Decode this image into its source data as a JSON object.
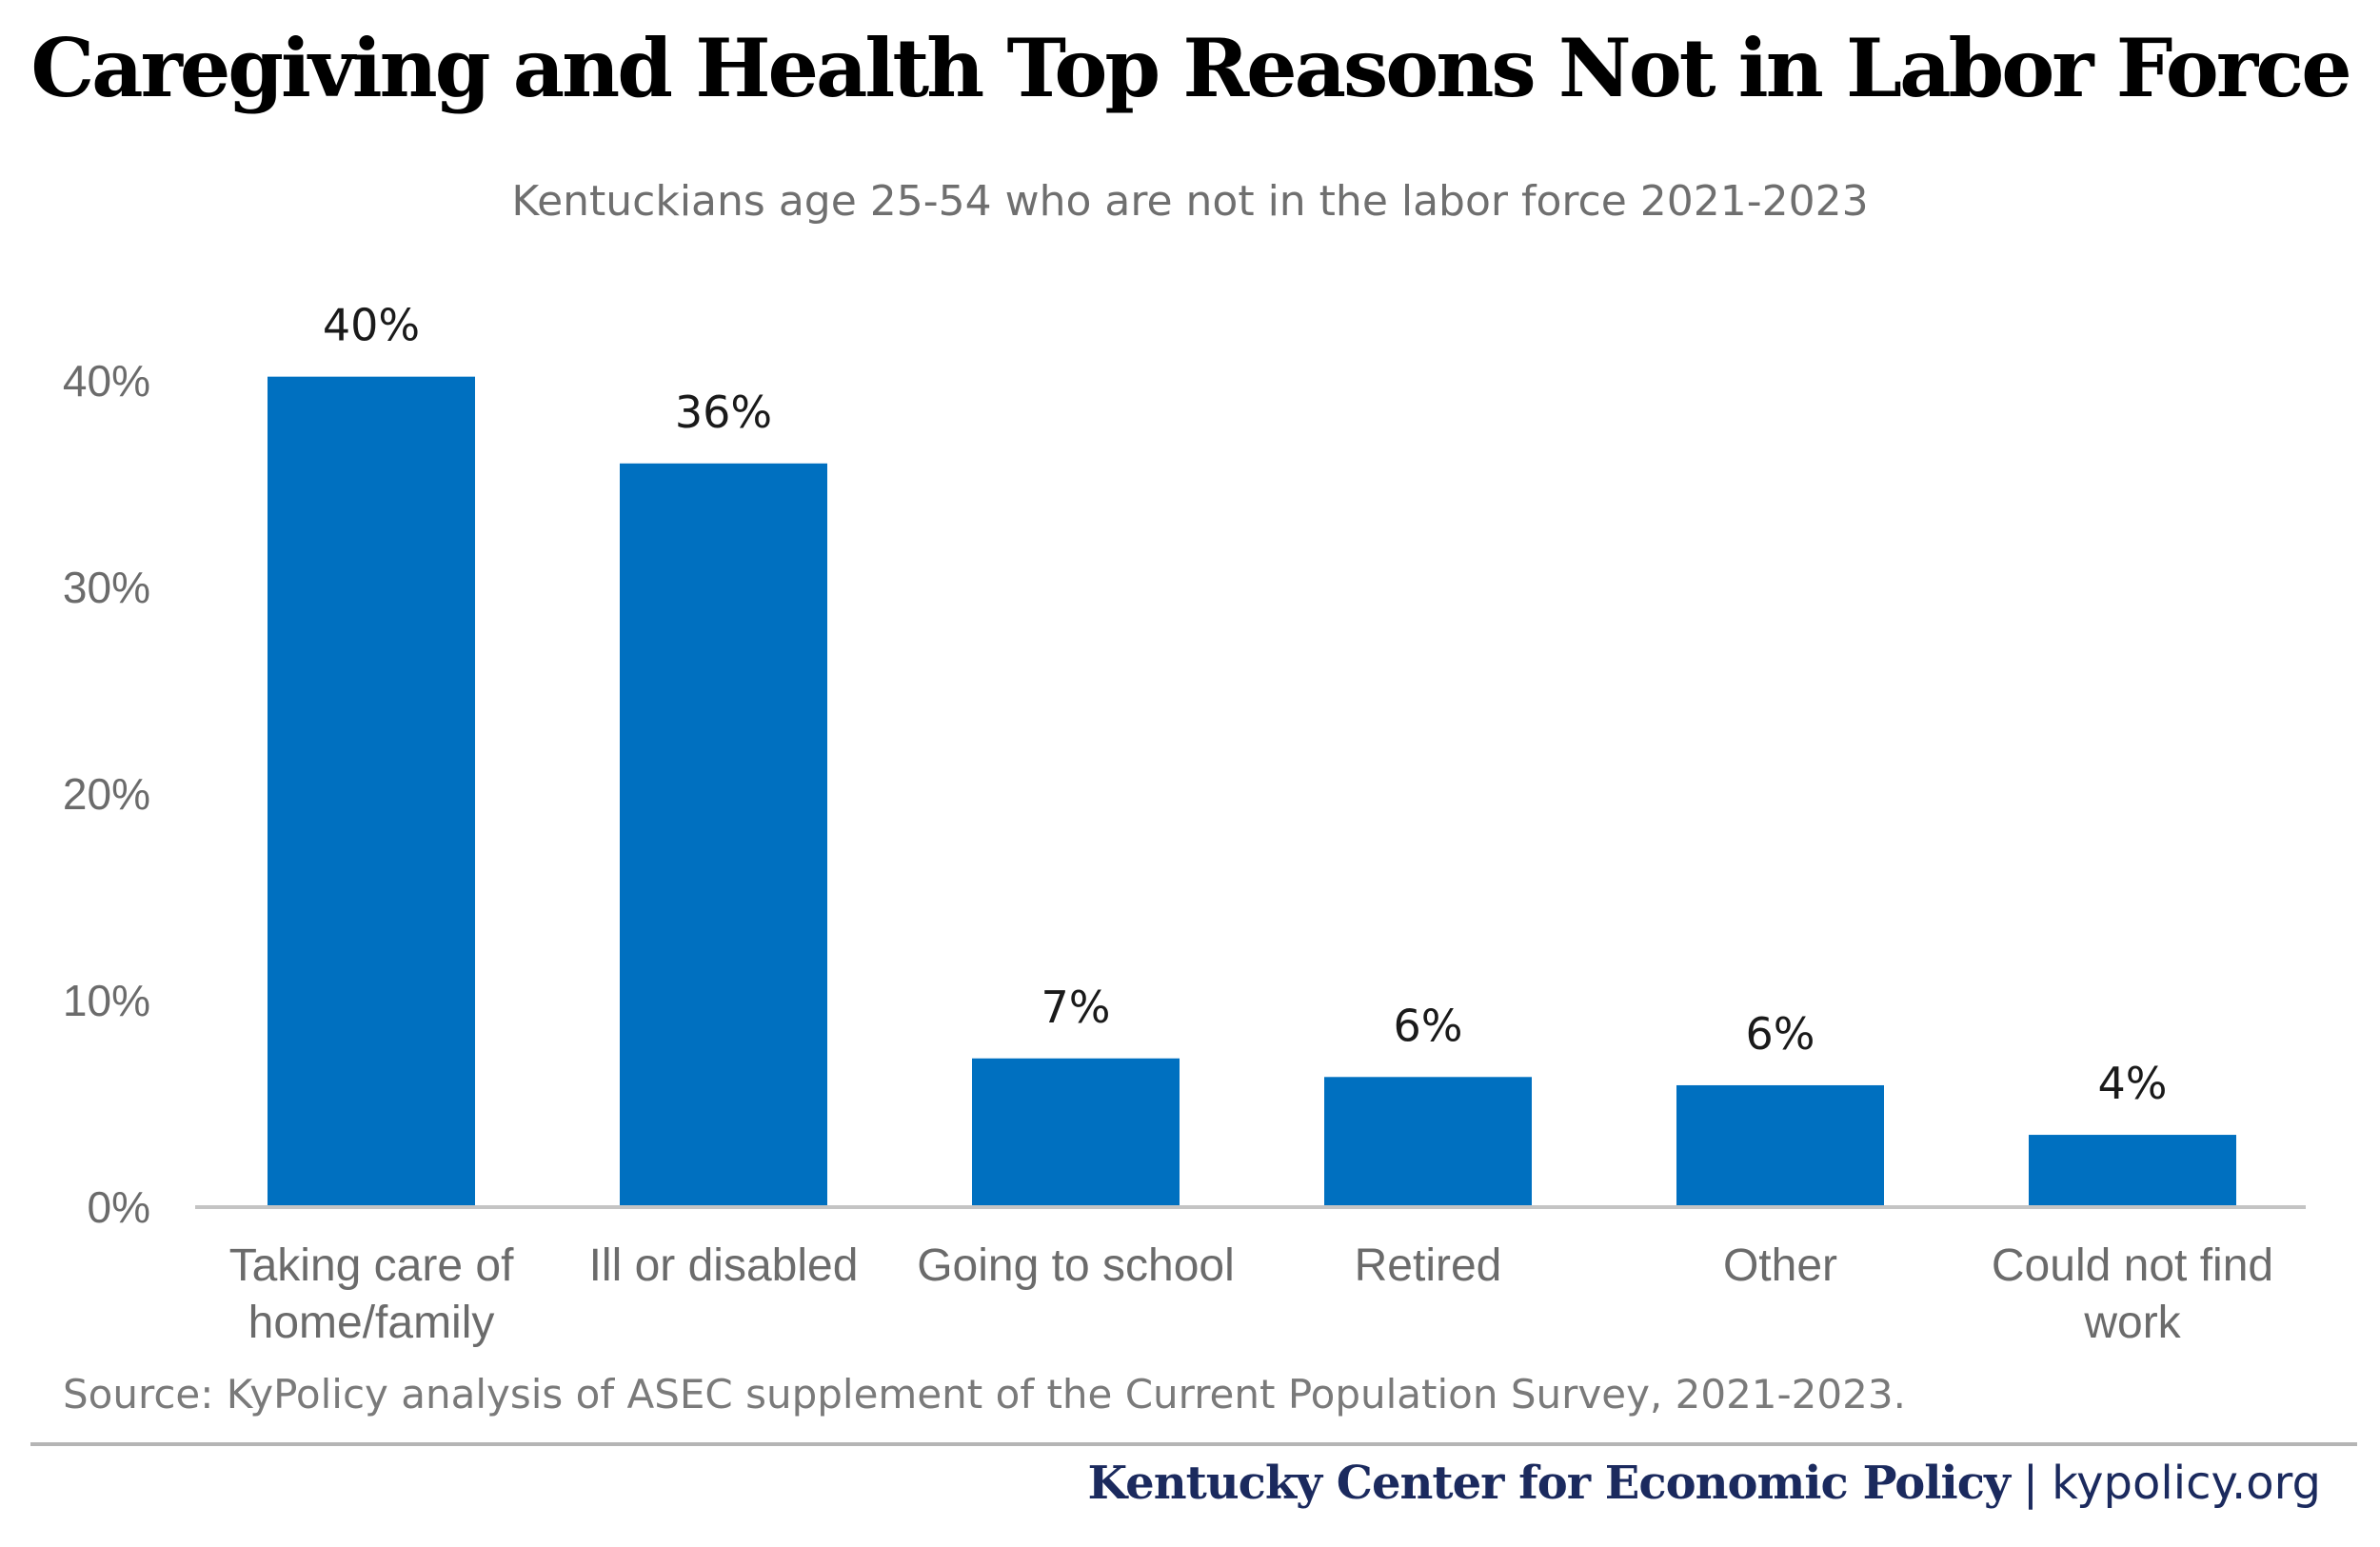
{
  "chart_data": {
    "type": "bar",
    "title": "Caregiving and Health Top Reasons Not in Labor Force",
    "subtitle": "Kentuckians age 25-54 who are not in the labor force 2021-2023",
    "categories": [
      [
        "Taking care of",
        "home/family"
      ],
      [
        "Ill or disabled"
      ],
      [
        "Going to school"
      ],
      [
        "Retired"
      ],
      [
        "Other"
      ],
      [
        "Could not find",
        "work"
      ]
    ],
    "values": [
      40.2,
      36.0,
      7.2,
      6.3,
      5.9,
      3.5
    ],
    "data_labels": [
      "40%",
      "36%",
      "7%",
      "6%",
      "6%",
      "4%"
    ],
    "yticks": [
      0,
      10,
      20,
      30,
      40
    ],
    "ytick_labels": [
      "0%",
      "10%",
      "20%",
      "30%",
      "40%"
    ],
    "ylim": [
      0,
      40
    ],
    "xlabel": "",
    "ylabel": "",
    "grid": false,
    "bar_color": "#0070c0"
  },
  "source": "Source: KyPolicy analysis of ASEC supplement of the Current Population Survey, 2021-2023.",
  "footer": {
    "org": "Kentucky Center for Economic Policy",
    "separator": "|",
    "site": "kypolicy.org"
  }
}
